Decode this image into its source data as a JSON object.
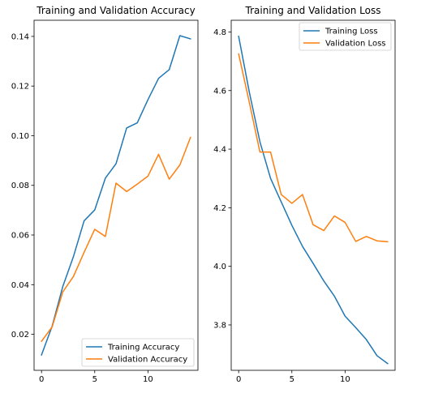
{
  "chart_data": [
    {
      "type": "line",
      "title": "Training and Validation Accuracy",
      "xlabel": "",
      "ylabel": "",
      "xlim": [
        -0.7,
        14.7
      ],
      "ylim": [
        0.0055,
        0.1465
      ],
      "xticks": [
        0,
        5,
        10
      ],
      "yticks": [
        0.02,
        0.04,
        0.06,
        0.08,
        0.1,
        0.12,
        0.14
      ],
      "ytick_labels": [
        "0.02",
        "0.04",
        "0.06",
        "0.08",
        "0.10",
        "0.12",
        "0.14"
      ],
      "legend_position": "lower-right",
      "grid": false,
      "x": [
        0,
        1,
        2,
        3,
        4,
        5,
        6,
        7,
        8,
        9,
        10,
        11,
        12,
        13,
        14
      ],
      "series": [
        {
          "name": "Training Accuracy",
          "color": "#1f77b4",
          "values": [
            0.0117,
            0.0233,
            0.0393,
            0.0513,
            0.0657,
            0.0701,
            0.0829,
            0.0887,
            0.1031,
            0.1052,
            0.1145,
            0.1231,
            0.1266,
            0.1403,
            0.139
          ]
        },
        {
          "name": "Validation Accuracy",
          "color": "#ff7f0e",
          "values": [
            0.0172,
            0.023,
            0.0371,
            0.0433,
            0.053,
            0.0623,
            0.0594,
            0.0809,
            0.0775,
            0.0805,
            0.0837,
            0.0925,
            0.0825,
            0.0882,
            0.0993
          ]
        }
      ]
    },
    {
      "type": "line",
      "title": "Training and Validation Loss",
      "xlabel": "",
      "ylabel": "",
      "xlim": [
        -0.7,
        14.7
      ],
      "ylim": [
        3.645,
        4.84
      ],
      "xticks": [
        0,
        5,
        10
      ],
      "yticks": [
        3.8,
        4.0,
        4.2,
        4.4,
        4.6,
        4.8
      ],
      "ytick_labels": [
        "3.8",
        "4.0",
        "4.2",
        "4.4",
        "4.6",
        "4.8"
      ],
      "legend_position": "upper-right",
      "grid": false,
      "x": [
        0,
        1,
        2,
        3,
        4,
        5,
        6,
        7,
        8,
        9,
        10,
        11,
        12,
        13,
        14
      ],
      "series": [
        {
          "name": "Training Loss",
          "color": "#1f77b4",
          "values": [
            4.785,
            4.595,
            4.425,
            4.3,
            4.22,
            4.14,
            4.068,
            4.01,
            3.95,
            3.898,
            3.83,
            3.791,
            3.75,
            3.695,
            3.668
          ]
        },
        {
          "name": "Validation Loss",
          "color": "#ff7f0e",
          "values": [
            4.725,
            4.56,
            4.39,
            4.39,
            4.245,
            4.215,
            4.245,
            4.142,
            4.122,
            4.172,
            4.15,
            4.085,
            4.102,
            4.087,
            4.084
          ]
        }
      ]
    }
  ]
}
